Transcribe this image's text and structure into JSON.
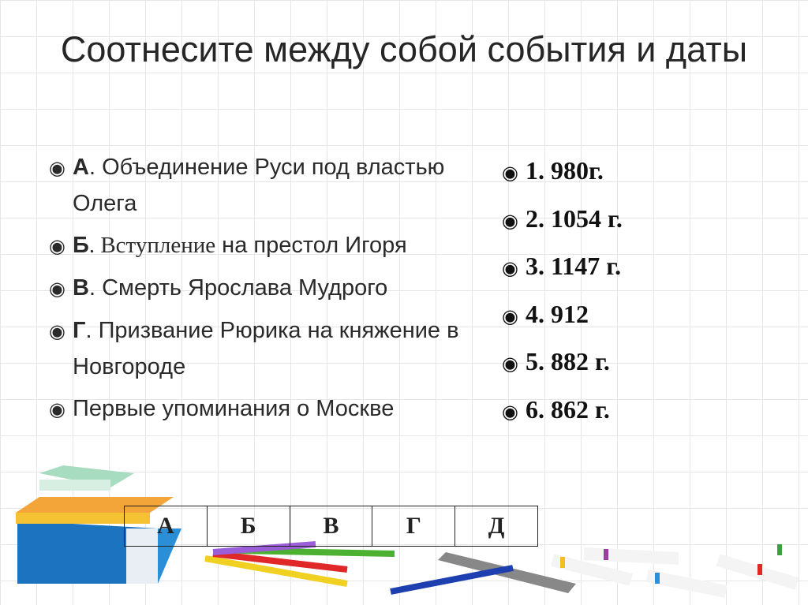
{
  "title": "Соотнесите  между собой  события и даты",
  "bullet_icon": "circled-dot-icon",
  "events": [
    {
      "letter": "А",
      "text": ". Объединение Руси под властью Олега"
    },
    {
      "letter": "Б",
      "text_serif": ". Вступление",
      "text": " на престол Игоря"
    },
    {
      "letter": "В",
      "text": ". Смерть Ярослава Мудрого"
    },
    {
      "letter": "Г",
      "text": ". Призвание Рюрика на княжение в Новгороде"
    },
    {
      "letter": "",
      "text": "Первые упоминания о Москве"
    }
  ],
  "dates": [
    {
      "num": "1.",
      "value": "980г."
    },
    {
      "num": "2.",
      "value": "1054 г."
    },
    {
      "num": "3.",
      "value": "1147 г."
    },
    {
      "num": "4.",
      "value": "912"
    },
    {
      "num": "5.",
      "value": "882 г."
    },
    {
      "num": "6.",
      "value": "862 г."
    }
  ],
  "answer_table": {
    "headers": [
      "А",
      "Б",
      "В",
      "Г",
      "Д"
    ]
  }
}
